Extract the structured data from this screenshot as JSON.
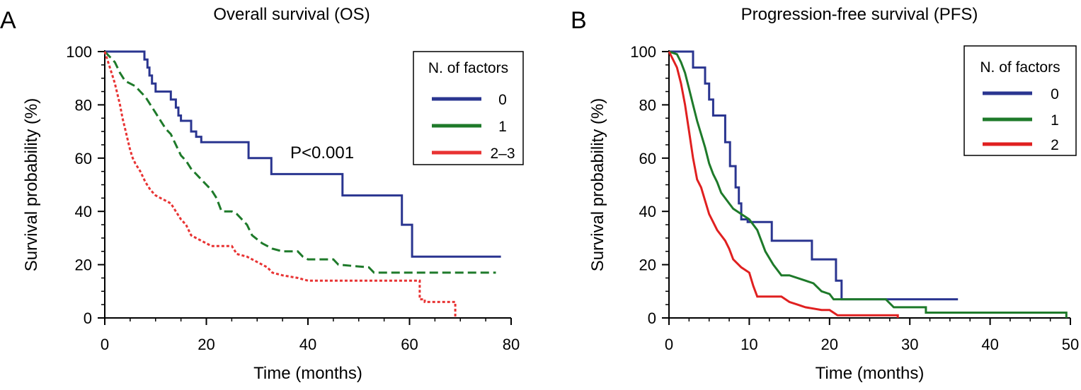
{
  "chart_data": [
    {
      "type": "line",
      "panel_label": "A",
      "title": "Overall survival (OS)",
      "xlabel": "Time (months)",
      "ylabel": "Survival probability (%)",
      "xlim": [
        0,
        80
      ],
      "ylim": [
        0,
        100
      ],
      "x_ticks": [
        0,
        20,
        40,
        60,
        80
      ],
      "y_ticks": [
        0,
        20,
        40,
        60,
        80,
        100
      ],
      "grid": false,
      "legend": {
        "title": "N. of factors",
        "position": "top-right"
      },
      "annotation": "P<0.001",
      "series": [
        {
          "name": "0",
          "color": "#2a3590",
          "style": "solid",
          "points": [
            [
              0,
              100
            ],
            [
              7.8,
              100
            ],
            [
              7.8,
              97
            ],
            [
              8.4,
              97
            ],
            [
              8.4,
              94
            ],
            [
              8.8,
              94
            ],
            [
              8.8,
              91
            ],
            [
              9.3,
              91
            ],
            [
              9.3,
              88
            ],
            [
              10,
              88
            ],
            [
              10,
              85
            ],
            [
              13,
              85
            ],
            [
              13,
              82
            ],
            [
              14,
              82
            ],
            [
              14,
              79
            ],
            [
              14.5,
              79
            ],
            [
              14.5,
              76
            ],
            [
              15,
              76
            ],
            [
              15,
              74
            ],
            [
              17,
              74
            ],
            [
              17,
              70
            ],
            [
              18,
              70
            ],
            [
              18,
              68
            ],
            [
              19,
              68
            ],
            [
              19,
              66
            ],
            [
              28.3,
              66
            ],
            [
              28.3,
              60
            ],
            [
              32.8,
              60
            ],
            [
              32.8,
              54
            ],
            [
              46.8,
              54
            ],
            [
              46.8,
              46
            ],
            [
              58.5,
              46
            ],
            [
              58.5,
              35
            ],
            [
              60.5,
              35
            ],
            [
              60.5,
              23
            ],
            [
              78,
              23
            ]
          ]
        },
        {
          "name": "1",
          "color": "#1e7a2a",
          "style": "dashed",
          "points": [
            [
              0,
              100
            ],
            [
              1,
              98
            ],
            [
              2,
              96
            ],
            [
              3,
              92
            ],
            [
              4,
              89
            ],
            [
              6,
              87
            ],
            [
              7,
              85
            ],
            [
              8,
              83
            ],
            [
              9,
              80
            ],
            [
              10,
              77
            ],
            [
              11,
              74
            ],
            [
              12,
              71
            ],
            [
              13,
              69
            ],
            [
              14,
              65
            ],
            [
              15,
              61
            ],
            [
              16,
              59
            ],
            [
              17,
              56
            ],
            [
              18,
              54
            ],
            [
              19,
              52
            ],
            [
              20,
              50
            ],
            [
              21,
              48
            ],
            [
              22,
              45
            ],
            [
              23,
              40
            ],
            [
              25,
              40
            ],
            [
              26,
              39
            ],
            [
              28,
              35
            ],
            [
              29,
              31
            ],
            [
              31,
              28
            ],
            [
              33,
              26
            ],
            [
              35,
              25
            ],
            [
              38,
              25
            ],
            [
              39,
              23
            ],
            [
              40,
              22
            ],
            [
              45,
              22
            ],
            [
              46,
              20
            ],
            [
              52,
              19
            ],
            [
              53,
              17
            ],
            [
              77,
              17
            ]
          ]
        },
        {
          "name": "2–3",
          "color": "#e83333",
          "style": "dotted",
          "points": [
            [
              0,
              100
            ],
            [
              0.5,
              97
            ],
            [
              1,
              94
            ],
            [
              1.5,
              91
            ],
            [
              2,
              88
            ],
            [
              2.5,
              84
            ],
            [
              3,
              80
            ],
            [
              3.5,
              75
            ],
            [
              4,
              71
            ],
            [
              4.5,
              67
            ],
            [
              5,
              63
            ],
            [
              5.5,
              60
            ],
            [
              6,
              58
            ],
            [
              7,
              55
            ],
            [
              8,
              51
            ],
            [
              9,
              48
            ],
            [
              10,
              46
            ],
            [
              11,
              45
            ],
            [
              12,
              44
            ],
            [
              13,
              43
            ],
            [
              14,
              40
            ],
            [
              15,
              37
            ],
            [
              16,
              35
            ],
            [
              17,
              31
            ],
            [
              18,
              30
            ],
            [
              19,
              29
            ],
            [
              20,
              28
            ],
            [
              21,
              27
            ],
            [
              25,
              27
            ],
            [
              26,
              24
            ],
            [
              28,
              23
            ],
            [
              29,
              22
            ],
            [
              31,
              20
            ],
            [
              32,
              19
            ],
            [
              33,
              17
            ],
            [
              35,
              16
            ],
            [
              38,
              15
            ],
            [
              40,
              14
            ],
            [
              62,
              14
            ],
            [
              62,
              7
            ],
            [
              63,
              7
            ],
            [
              63,
              6
            ],
            [
              69,
              6
            ],
            [
              69,
              0
            ]
          ]
        }
      ]
    },
    {
      "type": "line",
      "panel_label": "B",
      "title": "Progression-free survival (PFS)",
      "xlabel": "Time (months)",
      "ylabel": "Survival probability (%)",
      "xlim": [
        0,
        50
      ],
      "ylim": [
        0,
        100
      ],
      "x_ticks": [
        0,
        10,
        20,
        30,
        40,
        50
      ],
      "y_ticks": [
        0,
        20,
        40,
        60,
        80,
        100
      ],
      "grid": false,
      "legend": {
        "title": "N. of factors",
        "position": "top-right"
      },
      "series": [
        {
          "name": "0",
          "color": "#2a3590",
          "style": "solid",
          "points": [
            [
              0,
              100
            ],
            [
              3,
              100
            ],
            [
              3,
              94
            ],
            [
              4.5,
              94
            ],
            [
              4.5,
              88
            ],
            [
              5,
              88
            ],
            [
              5,
              82
            ],
            [
              5.5,
              82
            ],
            [
              5.5,
              76
            ],
            [
              7,
              76
            ],
            [
              7,
              66
            ],
            [
              7.6,
              66
            ],
            [
              7.6,
              57
            ],
            [
              8.3,
              57
            ],
            [
              8.3,
              49
            ],
            [
              8.7,
              49
            ],
            [
              8.7,
              43
            ],
            [
              9,
              43
            ],
            [
              9,
              37
            ],
            [
              9.8,
              37
            ],
            [
              9.8,
              36
            ],
            [
              12.8,
              36
            ],
            [
              12.8,
              29
            ],
            [
              17.8,
              29
            ],
            [
              17.8,
              22
            ],
            [
              20.8,
              22
            ],
            [
              20.8,
              14
            ],
            [
              21.5,
              14
            ],
            [
              21.5,
              7
            ],
            [
              36,
              7
            ]
          ]
        },
        {
          "name": "1",
          "color": "#1e7a2a",
          "style": "solid",
          "points": [
            [
              0,
              100
            ],
            [
              1,
              99
            ],
            [
              1.5,
              96
            ],
            [
              2,
              92
            ],
            [
              2.5,
              86
            ],
            [
              3,
              80
            ],
            [
              3.5,
              74
            ],
            [
              4,
              69
            ],
            [
              4.5,
              64
            ],
            [
              5,
              58
            ],
            [
              5.5,
              54
            ],
            [
              6,
              51
            ],
            [
              6.5,
              47
            ],
            [
              7,
              45
            ],
            [
              7.5,
              43
            ],
            [
              8,
              41
            ],
            [
              9,
              39
            ],
            [
              10,
              37
            ],
            [
              11,
              33
            ],
            [
              11.5,
              29
            ],
            [
              12,
              25
            ],
            [
              13,
              20
            ],
            [
              14,
              16
            ],
            [
              15,
              16
            ],
            [
              17,
              14
            ],
            [
              18,
              13
            ],
            [
              19,
              10
            ],
            [
              20,
              9
            ],
            [
              20.5,
              7
            ],
            [
              27,
              7
            ],
            [
              28,
              4
            ],
            [
              32,
              4
            ],
            [
              32,
              2
            ],
            [
              49.5,
              2
            ],
            [
              49.5,
              0
            ]
          ]
        },
        {
          "name": "2",
          "color": "#e02020",
          "style": "solid",
          "points": [
            [
              0,
              100
            ],
            [
              0.5,
              97
            ],
            [
              1,
              94
            ],
            [
              1.5,
              88
            ],
            [
              2,
              80
            ],
            [
              2.5,
              70
            ],
            [
              3,
              60
            ],
            [
              3.5,
              52
            ],
            [
              4,
              49
            ],
            [
              4.5,
              44
            ],
            [
              5,
              39
            ],
            [
              5.5,
              36
            ],
            [
              6,
              33
            ],
            [
              6.5,
              31
            ],
            [
              7,
              29
            ],
            [
              7.5,
              26
            ],
            [
              8,
              22
            ],
            [
              9,
              19
            ],
            [
              10,
              17
            ],
            [
              10.5,
              12
            ],
            [
              11,
              8
            ],
            [
              14,
              8
            ],
            [
              15,
              6
            ],
            [
              16,
              5
            ],
            [
              17,
              4
            ],
            [
              19,
              3
            ],
            [
              20,
              3
            ],
            [
              21,
              1
            ],
            [
              28.5,
              1
            ],
            [
              28.5,
              0
            ]
          ]
        }
      ]
    }
  ]
}
